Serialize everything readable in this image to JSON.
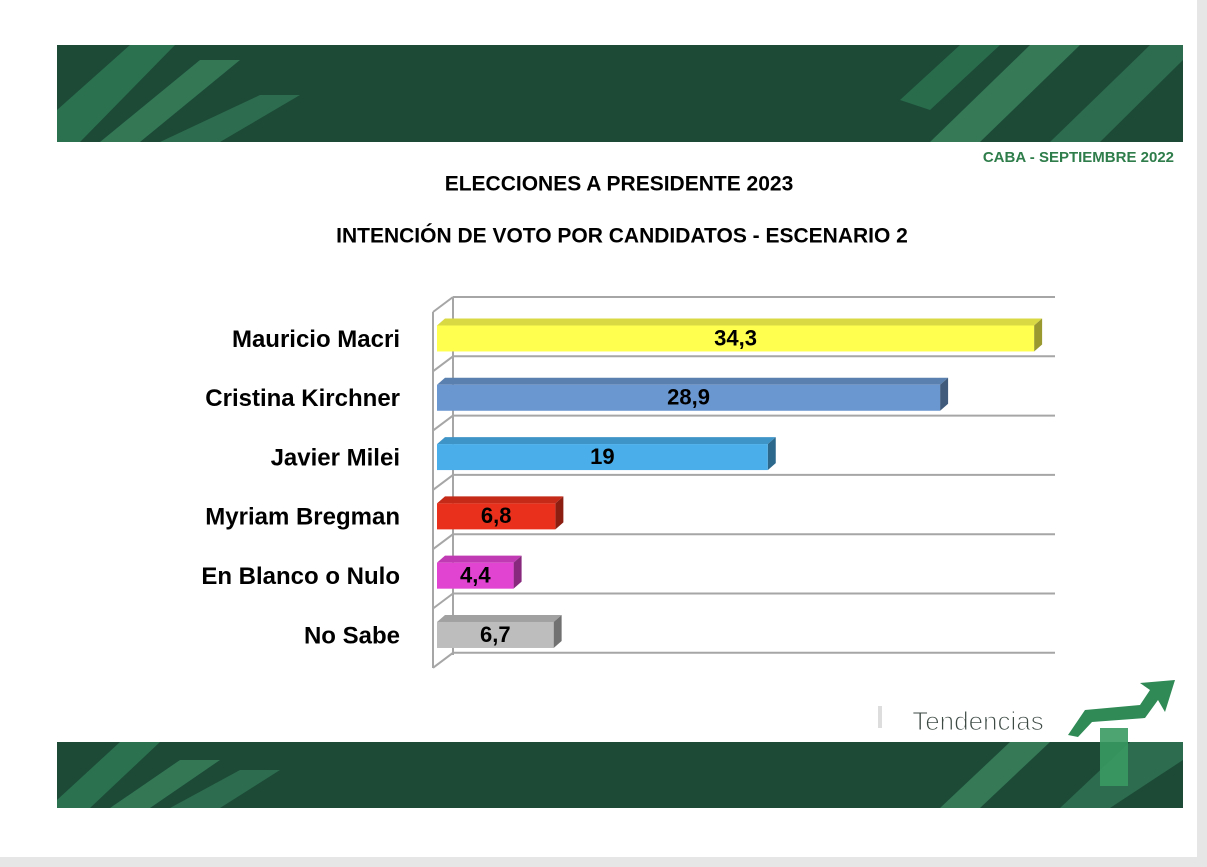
{
  "header": {
    "date": "CABA - SEPTIEMBRE 2022"
  },
  "logo": {
    "text": "Tendencias"
  },
  "chart_data": {
    "type": "bar",
    "orientation": "horizontal",
    "title": "ELECCIONES A PRESIDENTE 2023",
    "subtitle": "INTENCIÓN DE VOTO POR CANDIDATOS - ESCENARIO 2",
    "categories": [
      "Mauricio Macri",
      "Cristina Kirchner",
      "Javier Milei",
      "Myriam Bregman",
      "En Blanco o Nulo",
      "No Sabe"
    ],
    "values": [
      34.3,
      28.9,
      19,
      6.8,
      4.4,
      6.7
    ],
    "value_labels": [
      "34,3",
      "28,9",
      "19",
      "6,8",
      "4,4",
      "6,7"
    ],
    "colors": [
      "#ffff50",
      "#6a97cf",
      "#4aaeea",
      "#e8301c",
      "#e244d2",
      "#bdbdbd"
    ],
    "xlim": [
      0,
      35.5
    ],
    "grid": true
  }
}
